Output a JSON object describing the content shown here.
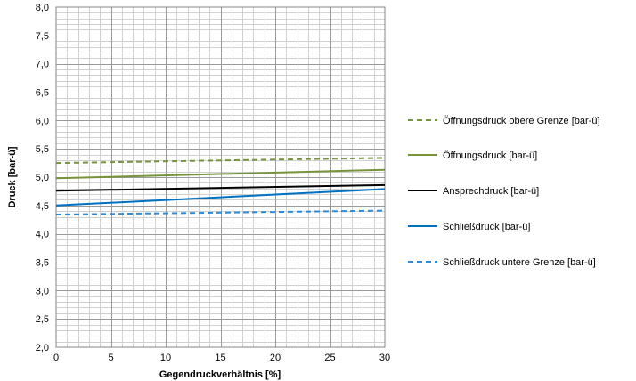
{
  "chart_data": {
    "type": "line",
    "title": "",
    "xlabel": "Gegendruckverhältnis [%]",
    "ylabel": "Druck [bar-ü]",
    "xlim": [
      0,
      30
    ],
    "ylim": [
      2.0,
      8.0
    ],
    "x_ticks": [
      "0",
      "5",
      "10",
      "15",
      "20",
      "25",
      "30"
    ],
    "y_ticks": [
      "2,0",
      "2,5",
      "3,0",
      "3,5",
      "4,0",
      "4,5",
      "5,0",
      "5,5",
      "6,0",
      "6,5",
      "7,0",
      "7,5",
      "8,0"
    ],
    "grid": true,
    "legend_position": "right",
    "series": [
      {
        "name": "Öffnungsdruck obere Grenze [bar-ü]",
        "color": "#77933c",
        "dashed": true,
        "x": [
          0,
          30
        ],
        "y": [
          5.25,
          5.34
        ]
      },
      {
        "name": "Öffnungsdruck [bar-ü]",
        "color": "#77933c",
        "dashed": false,
        "x": [
          0,
          30
        ],
        "y": [
          4.98,
          5.13
        ]
      },
      {
        "name": "Ansprechdruck [bar-ü]",
        "color": "#000000",
        "dashed": false,
        "x": [
          0,
          30
        ],
        "y": [
          4.76,
          4.86
        ]
      },
      {
        "name": "Schließdruck [bar-ü]",
        "color": "#0070c0",
        "dashed": false,
        "x": [
          0,
          30
        ],
        "y": [
          4.5,
          4.79
        ]
      },
      {
        "name": "Schließdruck untere Grenze [bar-ü]",
        "color": "#2e8bd8",
        "dashed": true,
        "x": [
          0,
          30
        ],
        "y": [
          4.34,
          4.41
        ]
      }
    ]
  }
}
